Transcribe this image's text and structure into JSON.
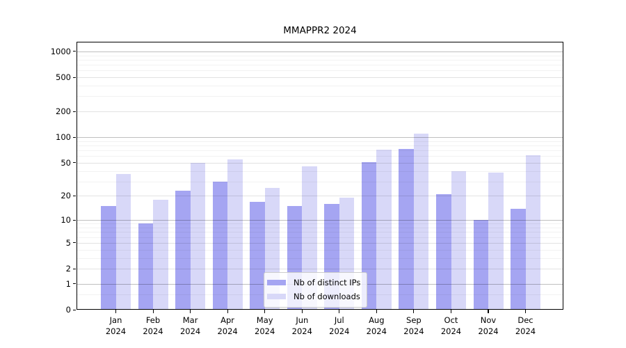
{
  "title": "MMAPPR2 2024",
  "chart_data": {
    "type": "bar",
    "title": "MMAPPR2 2024",
    "scale": "log1p",
    "grid": true,
    "legend_position": "lower center",
    "categories": [
      "Jan",
      "Feb",
      "Mar",
      "Apr",
      "May",
      "Jun",
      "Jul",
      "Aug",
      "Sep",
      "Oct",
      "Nov",
      "Dec"
    ],
    "year_label": "2024",
    "series": [
      {
        "name": "Nb of distinct IPs",
        "color": "#a5a5f2",
        "values": [
          15,
          9,
          23,
          30,
          17,
          15,
          16,
          51,
          73,
          21,
          10,
          14
        ]
      },
      {
        "name": "Nb of downloads",
        "color": "#d8d8f8",
        "values": [
          37,
          18,
          50,
          55,
          25,
          45,
          19,
          71,
          110,
          40,
          38,
          61
        ]
      }
    ],
    "y_ticks": [
      1000,
      500,
      200,
      100,
      50,
      20,
      10,
      5,
      2,
      1,
      0
    ],
    "ylim": [
      0,
      1300
    ],
    "xlabel": "",
    "ylabel": ""
  }
}
